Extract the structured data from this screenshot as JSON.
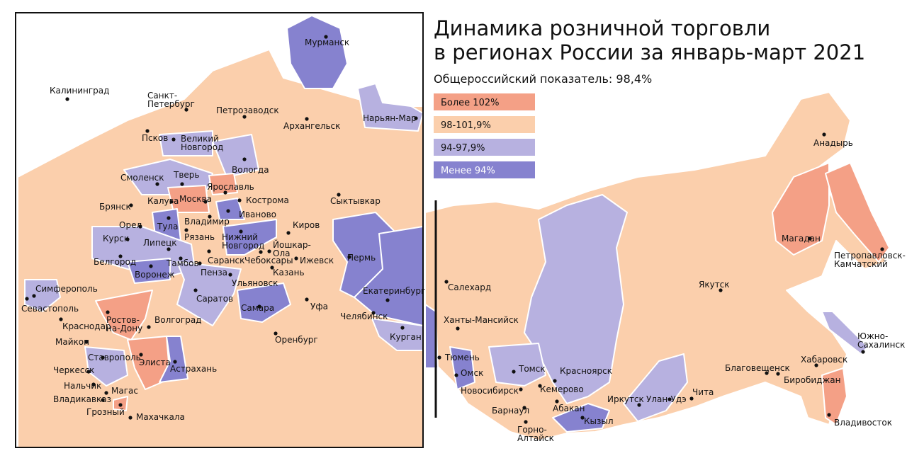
{
  "title": [
    "Динамика розничной торговли",
    "в регионах России за январь-март 2021"
  ],
  "subtitle": "Общероссийский показатель: 98,4%",
  "legend": [
    {
      "label": "Более 102%",
      "color": "#f4a086"
    },
    {
      "label": "98-101,9%",
      "color": "#fbcfac"
    },
    {
      "label": "94-97,9%",
      "color": "#b7b1e0"
    },
    {
      "label": "Менее 94%",
      "color": "#8682cf"
    }
  ],
  "cities": [
    {
      "label": [
        "Мурманск"
      ]
    },
    {
      "label": [
        "Калининград"
      ]
    },
    {
      "label": [
        "Санкт-",
        "Петербург"
      ]
    },
    {
      "label": [
        "Петрозаводск"
      ]
    },
    {
      "label": [
        "Архангельск"
      ]
    },
    {
      "label": [
        "Нарьян-Мар"
      ]
    },
    {
      "label": [
        "Псков"
      ]
    },
    {
      "label": [
        "Великий",
        "Новгород"
      ]
    },
    {
      "label": [
        "Вологда"
      ]
    },
    {
      "label": [
        "Смоленск"
      ]
    },
    {
      "label": [
        "Тверь"
      ]
    },
    {
      "label": [
        "Ярославль"
      ]
    },
    {
      "label": [
        "Кострома"
      ]
    },
    {
      "label": [
        "Сыктывкар"
      ]
    },
    {
      "label": [
        "Брянск"
      ]
    },
    {
      "label": [
        "Калуга"
      ]
    },
    {
      "label": [
        "Москва"
      ]
    },
    {
      "label": [
        "Иваново"
      ]
    },
    {
      "label": [
        "Владимир"
      ]
    },
    {
      "label": [
        "Тула"
      ]
    },
    {
      "label": [
        "Орел"
      ]
    },
    {
      "label": [
        "Рязань"
      ]
    },
    {
      "label": [
        "Киров"
      ]
    },
    {
      "label": [
        "Курск"
      ]
    },
    {
      "label": [
        "Липецк"
      ]
    },
    {
      "label": [
        "Нижний",
        "Новгород"
      ]
    },
    {
      "label": [
        "Йошкар-",
        "Ола"
      ]
    },
    {
      "label": [
        "Пермь"
      ]
    },
    {
      "label": [
        "Белгород"
      ]
    },
    {
      "label": [
        "Тамбов"
      ]
    },
    {
      "label": [
        "Саранск"
      ]
    },
    {
      "label": [
        "Чебоксары"
      ]
    },
    {
      "label": [
        "Ижевск"
      ]
    },
    {
      "label": [
        "Казань"
      ]
    },
    {
      "label": [
        "Воронеж"
      ]
    },
    {
      "label": [
        "Пенза"
      ]
    },
    {
      "label": [
        "Ульяновск"
      ]
    },
    {
      "label": [
        "Симферополь"
      ]
    },
    {
      "label": [
        "Севастополь"
      ]
    },
    {
      "label": [
        "Екатеринбург"
      ]
    },
    {
      "label": [
        "Саратов"
      ]
    },
    {
      "label": [
        "Самара"
      ]
    },
    {
      "label": [
        "Уфа"
      ]
    },
    {
      "label": [
        "Ростов-",
        "на-Дону"
      ]
    },
    {
      "label": [
        "Краснодар"
      ]
    },
    {
      "label": [
        "Волгоград"
      ]
    },
    {
      "label": [
        "Челябинск"
      ]
    },
    {
      "label": [
        "Курган"
      ]
    },
    {
      "label": [
        "Майкоп"
      ]
    },
    {
      "label": [
        "Оренбург"
      ]
    },
    {
      "label": [
        "Ставрополь"
      ]
    },
    {
      "label": [
        "Элиста"
      ]
    },
    {
      "label": [
        "Астрахань"
      ]
    },
    {
      "label": [
        "Черкесск"
      ]
    },
    {
      "label": [
        "Нальчик"
      ]
    },
    {
      "label": [
        "Магас"
      ]
    },
    {
      "label": [
        "Владикавказ"
      ]
    },
    {
      "label": [
        "Грозный"
      ]
    },
    {
      "label": [
        "Махачкала"
      ]
    },
    {
      "label": [
        "Анадырь"
      ]
    },
    {
      "label": [
        "Магадан"
      ]
    },
    {
      "label": [
        "Петропавловск-",
        "Камчатский"
      ]
    },
    {
      "label": [
        "Якутск"
      ]
    },
    {
      "label": [
        "Салехард"
      ]
    },
    {
      "label": [
        "Ханты-Мансийск"
      ]
    },
    {
      "label": [
        "Южно-",
        "Сахалинск"
      ]
    },
    {
      "label": [
        "Тюмень"
      ]
    },
    {
      "label": [
        "Омск"
      ]
    },
    {
      "label": [
        "Томск"
      ]
    },
    {
      "label": [
        "Красноярск"
      ]
    },
    {
      "label": [
        "Хабаровск"
      ]
    },
    {
      "label": [
        "Благовещенск"
      ]
    },
    {
      "label": [
        "Биробиджан"
      ]
    },
    {
      "label": [
        "Новосибирск"
      ]
    },
    {
      "label": [
        "Кемерово"
      ]
    },
    {
      "label": [
        "Иркутск"
      ]
    },
    {
      "label": [
        "Улан-Удэ"
      ]
    },
    {
      "label": [
        "Чита"
      ]
    },
    {
      "label": [
        "Барнаул"
      ]
    },
    {
      "label": [
        "Абакан"
      ]
    },
    {
      "label": [
        "Кызыл"
      ]
    },
    {
      "label": [
        "Владивосток"
      ]
    },
    {
      "label": [
        "Горно-",
        "Алтайск"
      ]
    }
  ]
}
